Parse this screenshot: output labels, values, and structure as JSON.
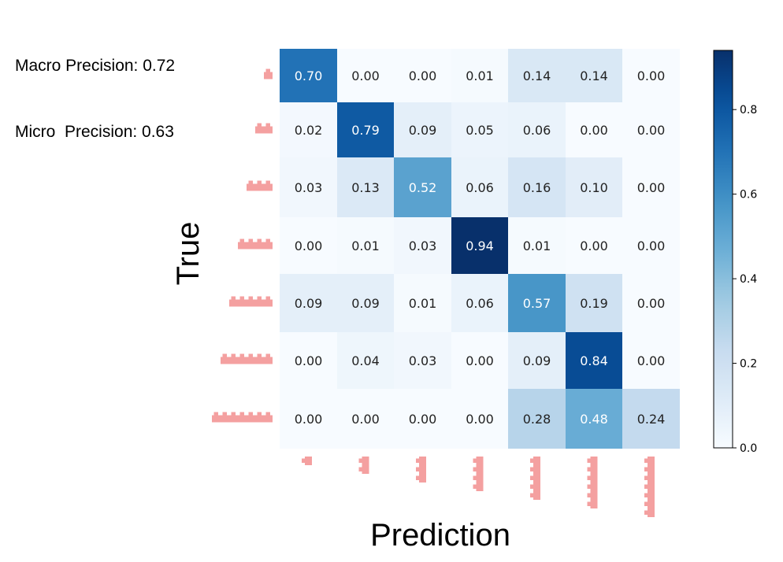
{
  "stats": {
    "macro": "Macro Precision: 0.72",
    "micro": "Micro  Precision: 0.63"
  },
  "chart_data": {
    "type": "heatmap",
    "title": "",
    "xlabel": "Prediction",
    "ylabel": "True",
    "rows": 7,
    "cols": 7,
    "values": [
      [
        0.7,
        0.0,
        0.0,
        0.01,
        0.14,
        0.14,
        0.0
      ],
      [
        0.02,
        0.79,
        0.09,
        0.05,
        0.06,
        0.0,
        0.0
      ],
      [
        0.03,
        0.13,
        0.52,
        0.06,
        0.16,
        0.1,
        0.0
      ],
      [
        0.0,
        0.01,
        0.03,
        0.94,
        0.01,
        0.0,
        0.0
      ],
      [
        0.09,
        0.09,
        0.01,
        0.06,
        0.57,
        0.19,
        0.0
      ],
      [
        0.0,
        0.04,
        0.03,
        0.0,
        0.09,
        0.84,
        0.0
      ],
      [
        0.0,
        0.0,
        0.0,
        0.0,
        0.28,
        0.48,
        0.24
      ]
    ],
    "tick_marker_counts": [
      1,
      2,
      3,
      4,
      5,
      6,
      7
    ],
    "tick_marker_color": "#f4a0a0",
    "colormap": "Blues",
    "color_range": [
      0.0,
      0.94
    ],
    "colorbar_ticks": [
      "0.0",
      "0.2",
      "0.4",
      "0.6",
      "0.8"
    ],
    "colorbar_tick_values": [
      0.0,
      0.2,
      0.4,
      0.6,
      0.8
    ]
  }
}
